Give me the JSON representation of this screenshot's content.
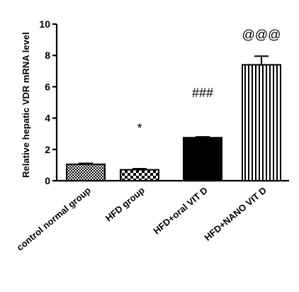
{
  "chart_data": {
    "type": "bar",
    "title": "",
    "xlabel": "",
    "ylabel": "Relative hepatic VDR mRNA level",
    "ylim": [
      0,
      10
    ],
    "yticks": [
      "0",
      "2",
      "4",
      "6",
      "8",
      "10"
    ],
    "categories": [
      "control normal group",
      "HFD group",
      "HFD+oral VIT D",
      "HFD+NANO VIT D"
    ],
    "values": [
      1.05,
      0.7,
      2.75,
      7.4
    ],
    "errors": [
      0.06,
      0.07,
      0.05,
      0.55
    ],
    "annotations": [
      "",
      "*",
      "###",
      "@@@"
    ],
    "fills": [
      "crosshatch-fine",
      "checker",
      "solid-black",
      "vertical-lines"
    ],
    "grid": false,
    "legend": "none"
  }
}
